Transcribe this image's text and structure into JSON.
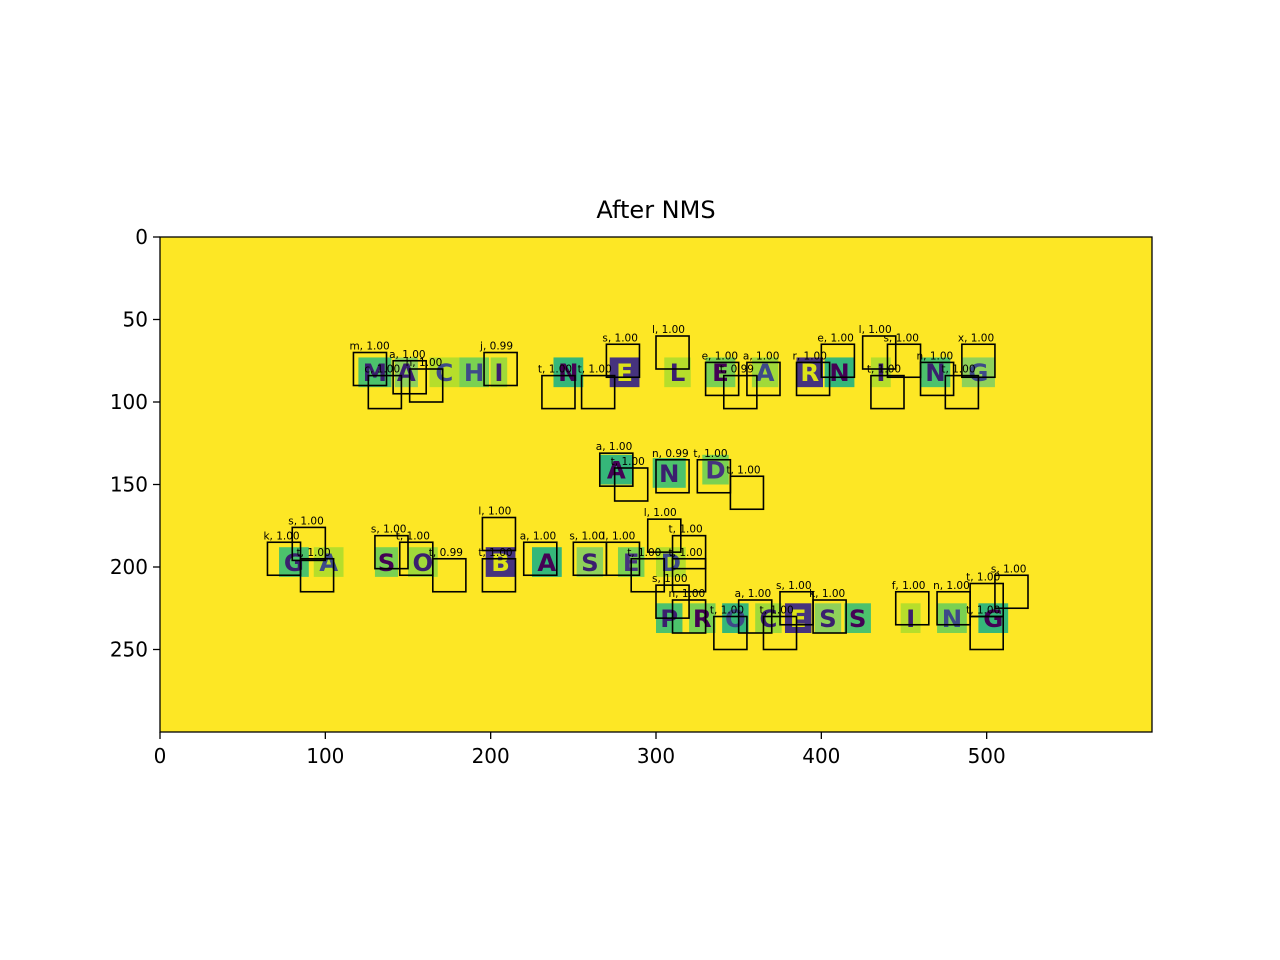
{
  "chart_data": {
    "type": "scatter",
    "title": "After NMS",
    "xlim": [
      0,
      600
    ],
    "ylim": [
      0,
      300
    ],
    "y_inverted": true,
    "xticks": [
      0,
      100,
      200,
      300,
      400,
      500
    ],
    "yticks": [
      0,
      50,
      100,
      150,
      200,
      250
    ],
    "background_color": "#fde725",
    "grid": false,
    "box_size": 20,
    "detections": [
      {
        "label": "m, 1.00",
        "x": 117,
        "y": 70
      },
      {
        "label": "a, 1.00",
        "x": 141,
        "y": 75
      },
      {
        "label": "c, 1.00",
        "x": 126,
        "y": 84
      },
      {
        "label": "h, 1.00",
        "x": 151,
        "y": 80
      },
      {
        "label": "j, 0.99",
        "x": 196,
        "y": 70
      },
      {
        "label": "t, 1.00",
        "x": 231,
        "y": 84
      },
      {
        "label": "t, 1.00",
        "x": 255,
        "y": 84
      },
      {
        "label": "s, 1.00",
        "x": 270,
        "y": 65
      },
      {
        "label": "l, 1.00",
        "x": 300,
        "y": 60
      },
      {
        "label": "e, 1.00",
        "x": 330,
        "y": 76
      },
      {
        "label": "t, 0.99",
        "x": 341,
        "y": 84
      },
      {
        "label": "a, 1.00",
        "x": 355,
        "y": 76
      },
      {
        "label": "r, 1.00",
        "x": 385,
        "y": 76
      },
      {
        "label": "e, 1.00",
        "x": 400,
        "y": 65
      },
      {
        "label": "l, 1.00",
        "x": 425,
        "y": 60
      },
      {
        "label": "s, 1.00",
        "x": 440,
        "y": 65
      },
      {
        "label": "t, 1.00",
        "x": 430,
        "y": 84
      },
      {
        "label": "n, 1.00",
        "x": 460,
        "y": 76
      },
      {
        "label": "t, 1.00",
        "x": 475,
        "y": 84
      },
      {
        "label": "x, 1.00",
        "x": 485,
        "y": 65
      },
      {
        "label": "a, 1.00",
        "x": 266,
        "y": 131
      },
      {
        "label": "t, 1.00",
        "x": 275,
        "y": 140
      },
      {
        "label": "n, 0.99",
        "x": 300,
        "y": 135
      },
      {
        "label": "t, 1.00",
        "x": 325,
        "y": 135
      },
      {
        "label": "t, 1.00",
        "x": 345,
        "y": 145
      },
      {
        "label": "k, 1.00",
        "x": 65,
        "y": 185
      },
      {
        "label": "s, 1.00",
        "x": 80,
        "y": 176
      },
      {
        "label": "t, 1.00",
        "x": 85,
        "y": 195
      },
      {
        "label": "s, 1.00",
        "x": 130,
        "y": 181
      },
      {
        "label": "t, 1.00",
        "x": 145,
        "y": 185
      },
      {
        "label": "t, 0.99",
        "x": 165,
        "y": 195
      },
      {
        "label": "l, 1.00",
        "x": 195,
        "y": 170
      },
      {
        "label": "t, 1.00",
        "x": 195,
        "y": 195
      },
      {
        "label": "a, 1.00",
        "x": 220,
        "y": 185
      },
      {
        "label": "s, 1.00",
        "x": 250,
        "y": 185
      },
      {
        "label": "l, 1.00",
        "x": 270,
        "y": 185
      },
      {
        "label": "t, 1.00",
        "x": 285,
        "y": 195
      },
      {
        "label": "l, 1.00",
        "x": 295,
        "y": 171
      },
      {
        "label": "t, 1.00",
        "x": 310,
        "y": 181
      },
      {
        "label": "t, 1.00",
        "x": 310,
        "y": 195
      },
      {
        "label": "s, 1.00",
        "x": 300,
        "y": 211
      },
      {
        "label": "n, 1.00",
        "x": 310,
        "y": 220
      },
      {
        "label": "t, 1.00",
        "x": 335,
        "y": 230
      },
      {
        "label": "a, 1.00",
        "x": 350,
        "y": 220
      },
      {
        "label": "t, 1.00",
        "x": 365,
        "y": 230
      },
      {
        "label": "s, 1.00",
        "x": 375,
        "y": 215
      },
      {
        "label": "k, 1.00",
        "x": 395,
        "y": 220
      },
      {
        "label": "f, 1.00",
        "x": 445,
        "y": 215
      },
      {
        "label": "n, 1.00",
        "x": 470,
        "y": 215
      },
      {
        "label": "t, 1.00",
        "x": 490,
        "y": 210
      },
      {
        "label": "s, 1.00",
        "x": 505,
        "y": 205
      },
      {
        "label": "t, 1.00",
        "x": 490,
        "y": 230
      }
    ],
    "letter_tiles": [
      {
        "char": "M",
        "x": 120,
        "y": 73,
        "w": 20,
        "h": 18,
        "bg": "#4cc26c",
        "fg": "#3b1f6e"
      },
      {
        "char": "A",
        "x": 142,
        "y": 73,
        "w": 14,
        "h": 18,
        "bg": "#8fd15a",
        "fg": "#3b1f6e"
      },
      {
        "char": "C",
        "x": 163,
        "y": 73,
        "w": 18,
        "h": 18,
        "bg": "#b6de2b",
        "fg": "#3e4a89"
      },
      {
        "char": "H",
        "x": 181,
        "y": 73,
        "w": 18,
        "h": 18,
        "bg": "#7ad151",
        "fg": "#3e4a89"
      },
      {
        "char": "I",
        "x": 200,
        "y": 73,
        "w": 10,
        "h": 18,
        "bg": "#a0da39",
        "fg": "#3b1f6e"
      },
      {
        "char": "N",
        "x": 238,
        "y": 73,
        "w": 18,
        "h": 18,
        "bg": "#35b779",
        "fg": "#440154"
      },
      {
        "char": "E",
        "x": 272,
        "y": 73,
        "w": 18,
        "h": 18,
        "bg": "#46337e",
        "fg": "#dde318"
      },
      {
        "char": "L",
        "x": 305,
        "y": 73,
        "w": 16,
        "h": 18,
        "bg": "#b6de2b",
        "fg": "#3b1f6e"
      },
      {
        "char": "E",
        "x": 330,
        "y": 73,
        "w": 18,
        "h": 18,
        "bg": "#7ad151",
        "fg": "#440154"
      },
      {
        "char": "A",
        "x": 358,
        "y": 73,
        "w": 16,
        "h": 18,
        "bg": "#a0da39",
        "fg": "#3e4a89"
      },
      {
        "char": "R",
        "x": 385,
        "y": 73,
        "w": 16,
        "h": 18,
        "bg": "#46337e",
        "fg": "#dde318"
      },
      {
        "char": "N",
        "x": 402,
        "y": 73,
        "w": 18,
        "h": 18,
        "bg": "#35b779",
        "fg": "#440154"
      },
      {
        "char": "I",
        "x": 430,
        "y": 73,
        "w": 12,
        "h": 18,
        "bg": "#b6de2b",
        "fg": "#3b1f6e"
      },
      {
        "char": "N",
        "x": 460,
        "y": 73,
        "w": 18,
        "h": 18,
        "bg": "#4cc26c",
        "fg": "#3b1f6e"
      },
      {
        "char": "G",
        "x": 485,
        "y": 73,
        "w": 20,
        "h": 18,
        "bg": "#8fd15a",
        "fg": "#3e4a89"
      },
      {
        "char": "A",
        "x": 266,
        "y": 132,
        "w": 20,
        "h": 18,
        "bg": "#35b779",
        "fg": "#440154"
      },
      {
        "char": "N",
        "x": 298,
        "y": 134,
        "w": 20,
        "h": 18,
        "bg": "#4cc26c",
        "fg": "#3b1f6e"
      },
      {
        "char": "D",
        "x": 328,
        "y": 132,
        "w": 16,
        "h": 18,
        "bg": "#7ad151",
        "fg": "#46337e"
      },
      {
        "char": "G",
        "x": 72,
        "y": 188,
        "w": 18,
        "h": 18,
        "bg": "#4cc26c",
        "fg": "#3b1f6e"
      },
      {
        "char": "A",
        "x": 93,
        "y": 188,
        "w": 18,
        "h": 18,
        "bg": "#b6de2b",
        "fg": "#3e4a89"
      },
      {
        "char": "S",
        "x": 130,
        "y": 188,
        "w": 14,
        "h": 18,
        "bg": "#7ad151",
        "fg": "#440154"
      },
      {
        "char": "O",
        "x": 150,
        "y": 188,
        "w": 18,
        "h": 18,
        "bg": "#a0da39",
        "fg": "#3b1f6e"
      },
      {
        "char": "B",
        "x": 197,
        "y": 188,
        "w": 18,
        "h": 18,
        "bg": "#46337e",
        "fg": "#dde318"
      },
      {
        "char": "A",
        "x": 225,
        "y": 188,
        "w": 18,
        "h": 18,
        "bg": "#35b779",
        "fg": "#440154"
      },
      {
        "char": "S",
        "x": 252,
        "y": 188,
        "w": 16,
        "h": 18,
        "bg": "#8fd15a",
        "fg": "#3b1f6e"
      },
      {
        "char": "E",
        "x": 277,
        "y": 188,
        "w": 16,
        "h": 18,
        "bg": "#7ad151",
        "fg": "#46337e"
      },
      {
        "char": "D",
        "x": 300,
        "y": 188,
        "w": 18,
        "h": 18,
        "bg": "#b6de2b",
        "fg": "#3e4a89"
      },
      {
        "char": "P",
        "x": 300,
        "y": 222,
        "w": 16,
        "h": 18,
        "bg": "#4cc26c",
        "fg": "#3b1f6e"
      },
      {
        "char": "R",
        "x": 320,
        "y": 222,
        "w": 16,
        "h": 18,
        "bg": "#7ad151",
        "fg": "#440154"
      },
      {
        "char": "O",
        "x": 340,
        "y": 222,
        "w": 16,
        "h": 18,
        "bg": "#35b779",
        "fg": "#3e4a89"
      },
      {
        "char": "C",
        "x": 360,
        "y": 222,
        "w": 16,
        "h": 18,
        "bg": "#a0da39",
        "fg": "#3b1f6e"
      },
      {
        "char": "E",
        "x": 378,
        "y": 222,
        "w": 16,
        "h": 18,
        "bg": "#46337e",
        "fg": "#dde318"
      },
      {
        "char": "S",
        "x": 396,
        "y": 222,
        "w": 16,
        "h": 18,
        "bg": "#8fd15a",
        "fg": "#3b1f6e"
      },
      {
        "char": "S",
        "x": 414,
        "y": 222,
        "w": 16,
        "h": 18,
        "bg": "#4cc26c",
        "fg": "#440154"
      },
      {
        "char": "I",
        "x": 448,
        "y": 222,
        "w": 12,
        "h": 18,
        "bg": "#b6de2b",
        "fg": "#3b1f6e"
      },
      {
        "char": "N",
        "x": 470,
        "y": 222,
        "w": 18,
        "h": 18,
        "bg": "#7ad151",
        "fg": "#3e4a89"
      },
      {
        "char": "G",
        "x": 495,
        "y": 222,
        "w": 18,
        "h": 18,
        "bg": "#35b779",
        "fg": "#440154"
      }
    ]
  }
}
